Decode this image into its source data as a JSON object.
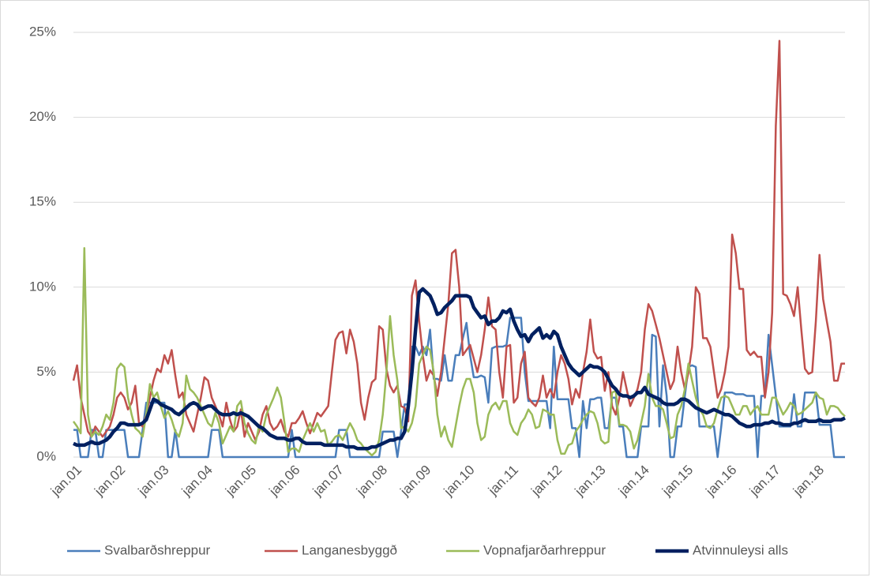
{
  "chart_data": {
    "type": "line",
    "categories": [
      "jan.01",
      null,
      null,
      null,
      null,
      null,
      null,
      null,
      null,
      null,
      null,
      null,
      "jan.02",
      null,
      null,
      null,
      null,
      null,
      null,
      null,
      null,
      null,
      null,
      null,
      "jan.03",
      null,
      null,
      null,
      null,
      null,
      null,
      null,
      null,
      null,
      null,
      null,
      "jan.04",
      null,
      null,
      null,
      null,
      null,
      null,
      null,
      null,
      null,
      null,
      null,
      "jan.05",
      null,
      null,
      null,
      null,
      null,
      null,
      null,
      null,
      null,
      null,
      null,
      "jan.06",
      null,
      null,
      null,
      null,
      null,
      null,
      null,
      null,
      null,
      null,
      null,
      "jan.07",
      null,
      null,
      null,
      null,
      null,
      null,
      null,
      null,
      null,
      null,
      null,
      "jan.08",
      null,
      null,
      null,
      null,
      null,
      null,
      null,
      null,
      null,
      null,
      null,
      "jan.09",
      null,
      null,
      null,
      null,
      null,
      null,
      null,
      null,
      null,
      null,
      null,
      "jan.10",
      null,
      null,
      null,
      null,
      null,
      null,
      null,
      null,
      null,
      null,
      null,
      "jan.11",
      null,
      null,
      null,
      null,
      null,
      null,
      null,
      null,
      null,
      null,
      null,
      "jan.12",
      null,
      null,
      null,
      null,
      null,
      null,
      null,
      null,
      null,
      null,
      null,
      "jan.13",
      null,
      null,
      null,
      null,
      null,
      null,
      null,
      null,
      null,
      null,
      null,
      "jan.14",
      null,
      null,
      null,
      null,
      null,
      null,
      null,
      null,
      null,
      null,
      null,
      "jan.15",
      null,
      null,
      null,
      null,
      null,
      null,
      null,
      null,
      null,
      null,
      null,
      "jan.16",
      null,
      null,
      null,
      null,
      null,
      null,
      null,
      null,
      null,
      null,
      null,
      "jan.17",
      null,
      null,
      null,
      null,
      null,
      null,
      null,
      null,
      null,
      null,
      null,
      "jan.18",
      null,
      null,
      null,
      null,
      null,
      null,
      null,
      null
    ],
    "series": [
      {
        "name": "Svalbarðshreppur",
        "color": "#4a7ebb",
        "width": 2.5,
        "values": [
          1.6,
          1.6,
          0,
          0,
          0,
          1.6,
          1.6,
          0,
          0,
          1.6,
          1.6,
          1.6,
          1.6,
          1.6,
          1.6,
          0,
          0,
          0,
          0,
          1.6,
          3.2,
          3.2,
          3.2,
          3.2,
          3.2,
          3.2,
          0,
          0,
          1.6,
          0,
          0,
          0,
          0,
          0,
          0,
          0,
          0,
          0,
          1.6,
          1.6,
          1.6,
          0,
          0,
          0,
          0,
          0,
          0,
          0,
          0,
          0,
          0,
          0,
          0,
          0,
          0,
          0,
          0,
          0,
          0,
          0,
          1.6,
          0,
          0,
          0,
          0,
          0,
          0,
          0,
          0,
          0,
          0,
          0,
          0,
          1.6,
          1.6,
          1.6,
          0,
          0,
          0,
          0,
          0,
          0,
          0,
          0,
          0,
          1.5,
          1.5,
          1.5,
          1.5,
          0,
          1.5,
          3.1,
          3.1,
          6.5,
          6.5,
          6.0,
          6.5,
          6.0,
          7.5,
          4.6,
          4.6,
          4.5,
          6.0,
          4.5,
          4.5,
          6.0,
          6.0,
          7.0,
          7.9,
          6.0,
          4.7,
          4.7,
          4.8,
          4.7,
          3.2,
          6.4,
          6.5,
          6.5,
          6.5,
          6.6,
          8.2,
          8.2,
          8.2,
          8.2,
          5.0,
          3.3,
          3.3,
          3.3,
          3.3,
          3.3,
          3.3,
          1.7,
          6.5,
          3.4,
          3.4,
          3.4,
          3.4,
          1.7,
          1.7,
          0,
          3.3,
          1.7,
          3.4,
          3.4,
          3.5,
          3.5,
          1.7,
          1.7,
          3.5,
          3.5,
          1.8,
          1.8,
          0,
          0,
          0,
          0,
          1.8,
          1.8,
          1.8,
          7.2,
          7.1,
          1.8,
          5.4,
          3.6,
          0,
          0,
          1.8,
          1.8,
          3.6,
          5.3,
          5.4,
          5.3,
          1.8,
          1.8,
          1.8,
          1.8,
          1.8,
          0,
          1.8,
          3.8,
          3.8,
          3.8,
          3.7,
          3.7,
          3.7,
          3.6,
          3.6,
          3.6,
          0,
          3.6,
          3.6,
          7.2,
          5.4,
          3.6,
          1.8,
          1.8,
          1.8,
          1.8,
          3.7,
          1.8,
          1.8,
          3.8,
          3.8,
          3.8,
          3.8,
          1.9,
          1.9,
          1.9,
          1.9,
          0,
          0,
          0,
          0
        ]
      },
      {
        "name": "Langanesbyggð",
        "color": "#c0504d",
        "width": 2.5,
        "values": [
          4.5,
          5.4,
          3.5,
          2.5,
          1.5,
          1.2,
          1.8,
          1.5,
          1.2,
          1.5,
          1.8,
          2.5,
          3.5,
          3.8,
          3.5,
          2.8,
          3.2,
          4.2,
          2.0,
          1.8,
          2.5,
          3.5,
          4.5,
          5.2,
          5.0,
          6.0,
          5.5,
          6.3,
          4.8,
          3.5,
          3.8,
          2.5,
          2.0,
          1.5,
          2.5,
          3.5,
          4.7,
          4.5,
          3.5,
          3.0,
          2.5,
          1.8,
          3.2,
          2.2,
          1.5,
          1.8,
          2.8,
          1.2,
          2.0,
          1.5,
          1.0,
          1.5,
          2.5,
          3.0,
          2.0,
          1.6,
          1.8,
          2.2,
          1.5,
          1.2,
          2.0,
          2.0,
          2.3,
          2.7,
          2.0,
          1.4,
          2.0,
          2.6,
          2.4,
          2.7,
          3.0,
          5.0,
          6.9,
          7.3,
          7.4,
          6.1,
          7.5,
          6.8,
          5.5,
          3.2,
          2.2,
          3.5,
          4.4,
          4.6,
          7.7,
          7.5,
          5.2,
          4.2,
          3.8,
          4.2,
          3.0,
          2.9,
          2.1,
          9.5,
          10.4,
          8.0,
          6.0,
          4.5,
          5.1,
          4.8,
          3.6,
          5.0,
          7.0,
          9.0,
          12.0,
          12.2,
          10.0,
          6.0,
          6.3,
          6.6,
          5.8,
          5.0,
          6.0,
          7.5,
          9.4,
          7.7,
          7.5,
          5.0,
          3.5,
          6.5,
          6.6,
          3.2,
          3.5,
          5.5,
          6.2,
          3.5,
          3.2,
          3.0,
          3.5,
          4.8,
          3.5,
          4.0,
          3.5,
          5.0,
          6.0,
          5.5,
          4.6,
          3.1,
          4.0,
          3.5,
          5.0,
          6.2,
          8.1,
          6.2,
          5.8,
          5.9,
          3.9,
          5.0,
          3.0,
          2.5,
          3.5,
          5.0,
          4.0,
          3.0,
          3.5,
          4.0,
          5.0,
          7.5,
          9.0,
          8.6,
          7.8,
          7.0,
          6.0,
          5.0,
          4.0,
          4.5,
          6.5,
          5.0,
          4.0,
          5.0,
          6.5,
          10.0,
          9.6,
          7.0,
          7.0,
          6.5,
          5.0,
          3.5,
          4.0,
          5.0,
          6.5,
          13.1,
          12.0,
          9.9,
          9.9,
          6.3,
          6.0,
          6.2,
          5.9,
          5.9,
          3.5,
          5.0,
          8.5,
          19.5,
          24.5,
          9.6,
          9.5,
          9.0,
          8.3,
          10.0,
          7.5,
          5.2,
          4.9,
          5.0,
          8.0,
          11.9,
          9.3,
          8.0,
          6.8,
          4.5,
          4.5,
          5.5,
          5.5
        ]
      },
      {
        "name": "Vopnafjarðarhreppur",
        "color": "#9bbb59",
        "width": 2.5,
        "values": [
          2.1,
          1.8,
          1.4,
          12.3,
          2.5,
          1.2,
          1.5,
          1.3,
          1.8,
          2.5,
          2.2,
          3.2,
          5.2,
          5.5,
          5.3,
          3.5,
          2.5,
          1.7,
          1.5,
          1.2,
          2.5,
          4.3,
          3.5,
          3.8,
          3.0,
          2.3,
          2.7,
          2.2,
          1.5,
          1.2,
          2.0,
          4.8,
          4.0,
          3.8,
          3.5,
          3.0,
          2.5,
          2.0,
          1.8,
          2.6,
          2.0,
          0.8,
          1.3,
          1.8,
          1.5,
          3.0,
          3.3,
          2.0,
          1.4,
          1.0,
          0.8,
          1.8,
          1.5,
          2.5,
          3.0,
          3.5,
          4.1,
          3.5,
          2.0,
          0.3,
          0.5,
          0.5,
          0.3,
          1.0,
          1.5,
          2.0,
          1.5,
          2.0,
          1.5,
          1.6,
          0.7,
          0.9,
          1.2,
          1.3,
          1.0,
          1.5,
          2.0,
          1.6,
          1.0,
          0.8,
          0.5,
          0.3,
          0.1,
          0.3,
          1.0,
          2.5,
          5.0,
          8.3,
          6.0,
          4.5,
          1.7,
          1.8,
          1.5,
          2.0,
          3.0,
          5.5,
          6.0,
          6.5,
          6.3,
          5.0,
          2.5,
          1.2,
          1.8,
          1.0,
          0.6,
          1.8,
          3.0,
          4.0,
          4.6,
          4.6,
          3.8,
          2.0,
          1.0,
          1.2,
          2.5,
          3.0,
          3.2,
          2.8,
          3.3,
          3.3,
          2.0,
          1.5,
          1.3,
          2.0,
          2.3,
          2.8,
          2.5,
          1.7,
          1.8,
          2.8,
          2.7,
          2.5,
          2.5,
          1.0,
          0.2,
          0.2,
          0.7,
          0.8,
          1.5,
          1.8,
          2.2,
          2.5,
          2.7,
          2.6,
          2.0,
          1.0,
          0.8,
          0.9,
          3.8,
          3.9,
          1.9,
          1.9,
          1.8,
          1.5,
          0.5,
          1.0,
          2.0,
          3.0,
          4.9,
          3.5,
          3.0,
          3.0,
          2.8,
          2.0,
          1.1,
          1.2,
          2.5,
          3.0,
          4.0,
          5.5,
          4.5,
          3.5,
          2.8,
          2.5,
          1.8,
          1.7,
          2.0,
          2.8,
          3.5,
          3.6,
          3.5,
          3.0,
          2.5,
          2.5,
          3.0,
          3.0,
          2.5,
          2.8,
          3.0,
          2.5,
          2.5,
          2.5,
          3.5,
          3.5,
          3.0,
          2.5,
          2.8,
          3.2,
          3.0,
          2.5,
          2.6,
          2.8,
          3.0,
          3.2,
          3.8,
          3.5,
          3.4,
          2.5,
          3.0,
          3.0,
          2.9,
          2.6,
          2.4
        ]
      },
      {
        "name": "Atvinnuleysi alls",
        "color": "#002060",
        "width": 4.5,
        "values": [
          0.8,
          0.7,
          0.7,
          0.7,
          0.8,
          0.9,
          0.8,
          0.8,
          0.9,
          1.0,
          1.2,
          1.5,
          1.7,
          2.0,
          2.0,
          1.9,
          1.9,
          1.9,
          1.9,
          2.0,
          2.2,
          2.8,
          3.4,
          3.3,
          3.1,
          3.0,
          2.9,
          2.8,
          2.6,
          2.5,
          2.7,
          2.9,
          3.1,
          3.2,
          3.1,
          2.8,
          2.9,
          3.0,
          3.0,
          2.8,
          2.6,
          2.5,
          2.5,
          2.5,
          2.6,
          2.5,
          2.6,
          2.5,
          2.4,
          2.2,
          2.0,
          1.8,
          1.7,
          1.5,
          1.3,
          1.2,
          1.1,
          1.1,
          1.1,
          1.0,
          1.0,
          1.1,
          1.1,
          0.9,
          0.8,
          0.8,
          0.8,
          0.8,
          0.8,
          0.7,
          0.7,
          0.7,
          0.7,
          0.7,
          0.7,
          0.6,
          0.6,
          0.6,
          0.5,
          0.5,
          0.5,
          0.5,
          0.6,
          0.6,
          0.7,
          0.8,
          0.9,
          1.0,
          1.0,
          1.1,
          1.1,
          1.5,
          3.0,
          5.0,
          7.5,
          9.7,
          9.9,
          9.7,
          9.5,
          9.0,
          8.4,
          8.5,
          8.8,
          9.0,
          9.2,
          9.5,
          9.5,
          9.5,
          9.5,
          9.4,
          8.8,
          8.5,
          8.2,
          8.3,
          7.8,
          8.0,
          8.0,
          8.2,
          8.6,
          8.5,
          8.7,
          8.0,
          7.5,
          7.1,
          7.2,
          6.8,
          7.2,
          7.4,
          7.6,
          7.0,
          7.2,
          7.0,
          7.4,
          7.2,
          6.5,
          6.0,
          5.5,
          5.2,
          5.0,
          4.8,
          5.0,
          5.2,
          5.4,
          5.3,
          5.3,
          5.2,
          5.0,
          4.6,
          4.2,
          4.0,
          3.7,
          3.6,
          3.6,
          3.5,
          3.6,
          3.8,
          3.8,
          4.1,
          3.7,
          3.6,
          3.5,
          3.4,
          3.2,
          3.1,
          3.1,
          3.1,
          3.2,
          3.4,
          3.4,
          3.3,
          3.1,
          2.9,
          2.8,
          2.7,
          2.6,
          2.7,
          2.8,
          2.7,
          2.6,
          2.5,
          2.5,
          2.4,
          2.2,
          2.0,
          1.9,
          1.8,
          1.8,
          1.9,
          1.9,
          1.9,
          2.0,
          2.0,
          2.1,
          2.0,
          2.0,
          1.9,
          1.9,
          1.9,
          2.0,
          2.0,
          2.1,
          2.2,
          2.1,
          2.1,
          2.1,
          2.2,
          2.1,
          2.1,
          2.1,
          2.2,
          2.2,
          2.2,
          2.3
        ]
      }
    ],
    "ylim": [
      0,
      25
    ],
    "yticks": [
      {
        "value": 0,
        "label": "0%"
      },
      {
        "value": 5,
        "label": "5%"
      },
      {
        "value": 10,
        "label": "10%"
      },
      {
        "value": 15,
        "label": "15%"
      },
      {
        "value": 20,
        "label": "20%"
      },
      {
        "value": 25,
        "label": "25%"
      }
    ],
    "grid": true,
    "legend": "bottom"
  }
}
